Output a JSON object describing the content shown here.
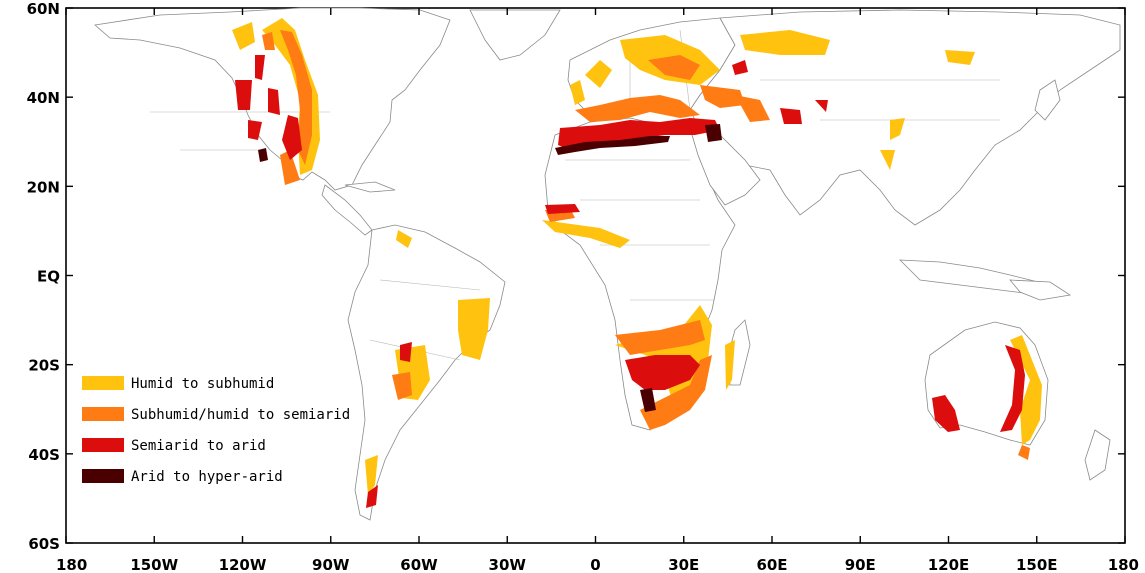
{
  "map": {
    "x_axis": {
      "ticks": [
        "180",
        "150W",
        "120W",
        "90W",
        "60W",
        "30W",
        "0",
        "30E",
        "60E",
        "90E",
        "120E",
        "150E",
        "180"
      ],
      "range": [
        -180,
        180
      ]
    },
    "y_axis": {
      "ticks": [
        "60N",
        "40N",
        "20N",
        "EQ",
        "20S",
        "40S",
        "60S"
      ],
      "range": [
        -60,
        60
      ]
    },
    "legend": {
      "placement": "bottom-left",
      "items": [
        {
          "label": "Humid to subhumid",
          "color": "#ffc20e"
        },
        {
          "label": "Subhumid/humid to semiarid",
          "color": "#ff7b14"
        },
        {
          "label": "Semiarid to arid",
          "color": "#dc0d0d"
        },
        {
          "label": "Arid to hyper-arid",
          "color": "#4a0000"
        }
      ]
    }
  }
}
